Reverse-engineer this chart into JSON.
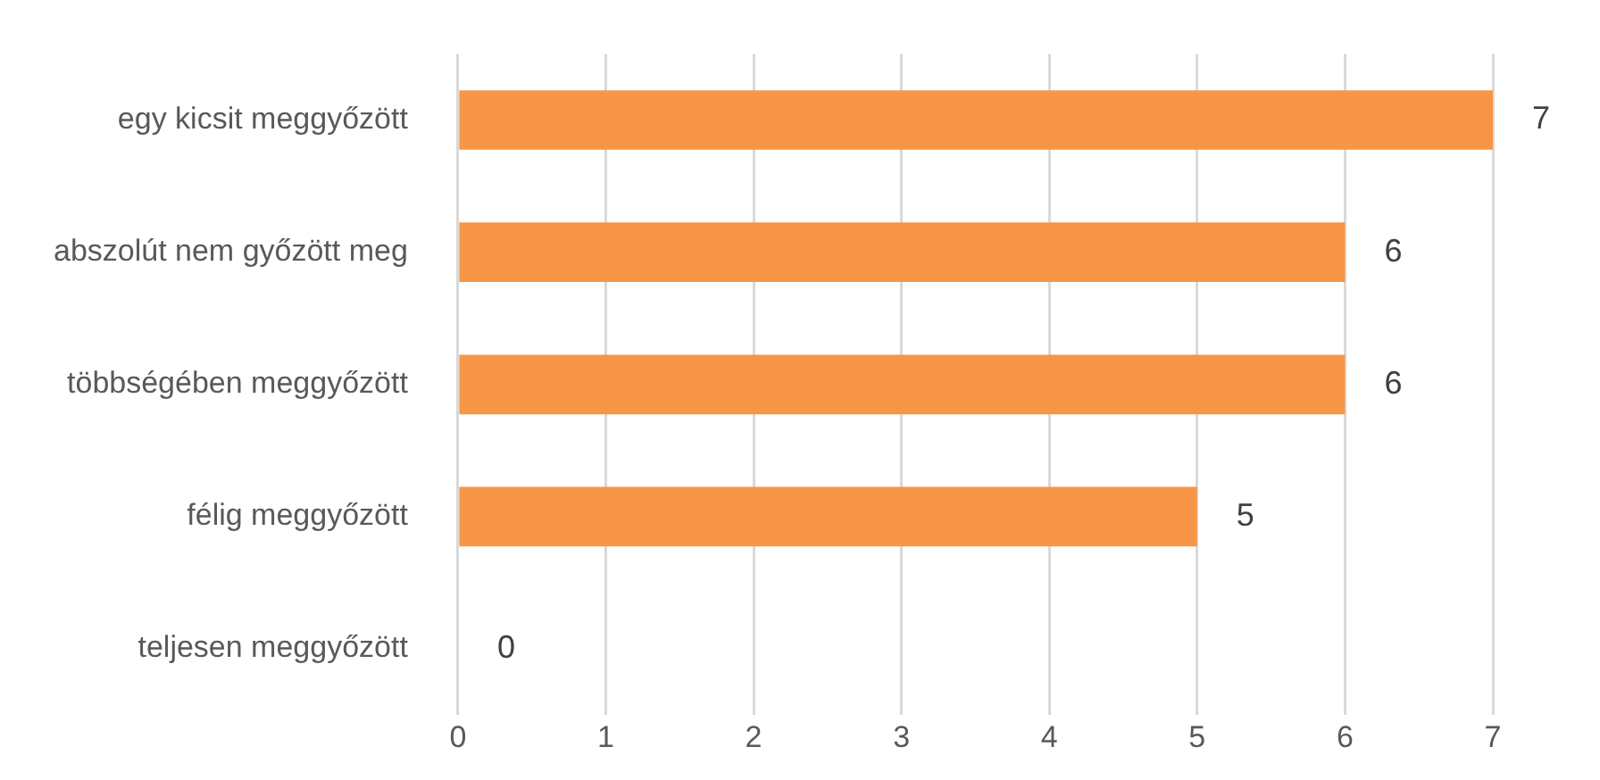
{
  "chart_data": {
    "type": "bar",
    "orientation": "horizontal",
    "categories": [
      "egy kicsit meggyőzött",
      "abszolút nem győzött meg",
      "többségében meggyőzött",
      "félig meggyőzött",
      "teljesen meggyőzött"
    ],
    "values": [
      7,
      6,
      6,
      5,
      0
    ],
    "color": "#f79646",
    "xlim": [
      0,
      7
    ],
    "xticks": [
      0,
      1,
      2,
      3,
      4,
      5,
      6,
      7
    ],
    "grid": "x",
    "data_labels": true,
    "legend": false
  }
}
